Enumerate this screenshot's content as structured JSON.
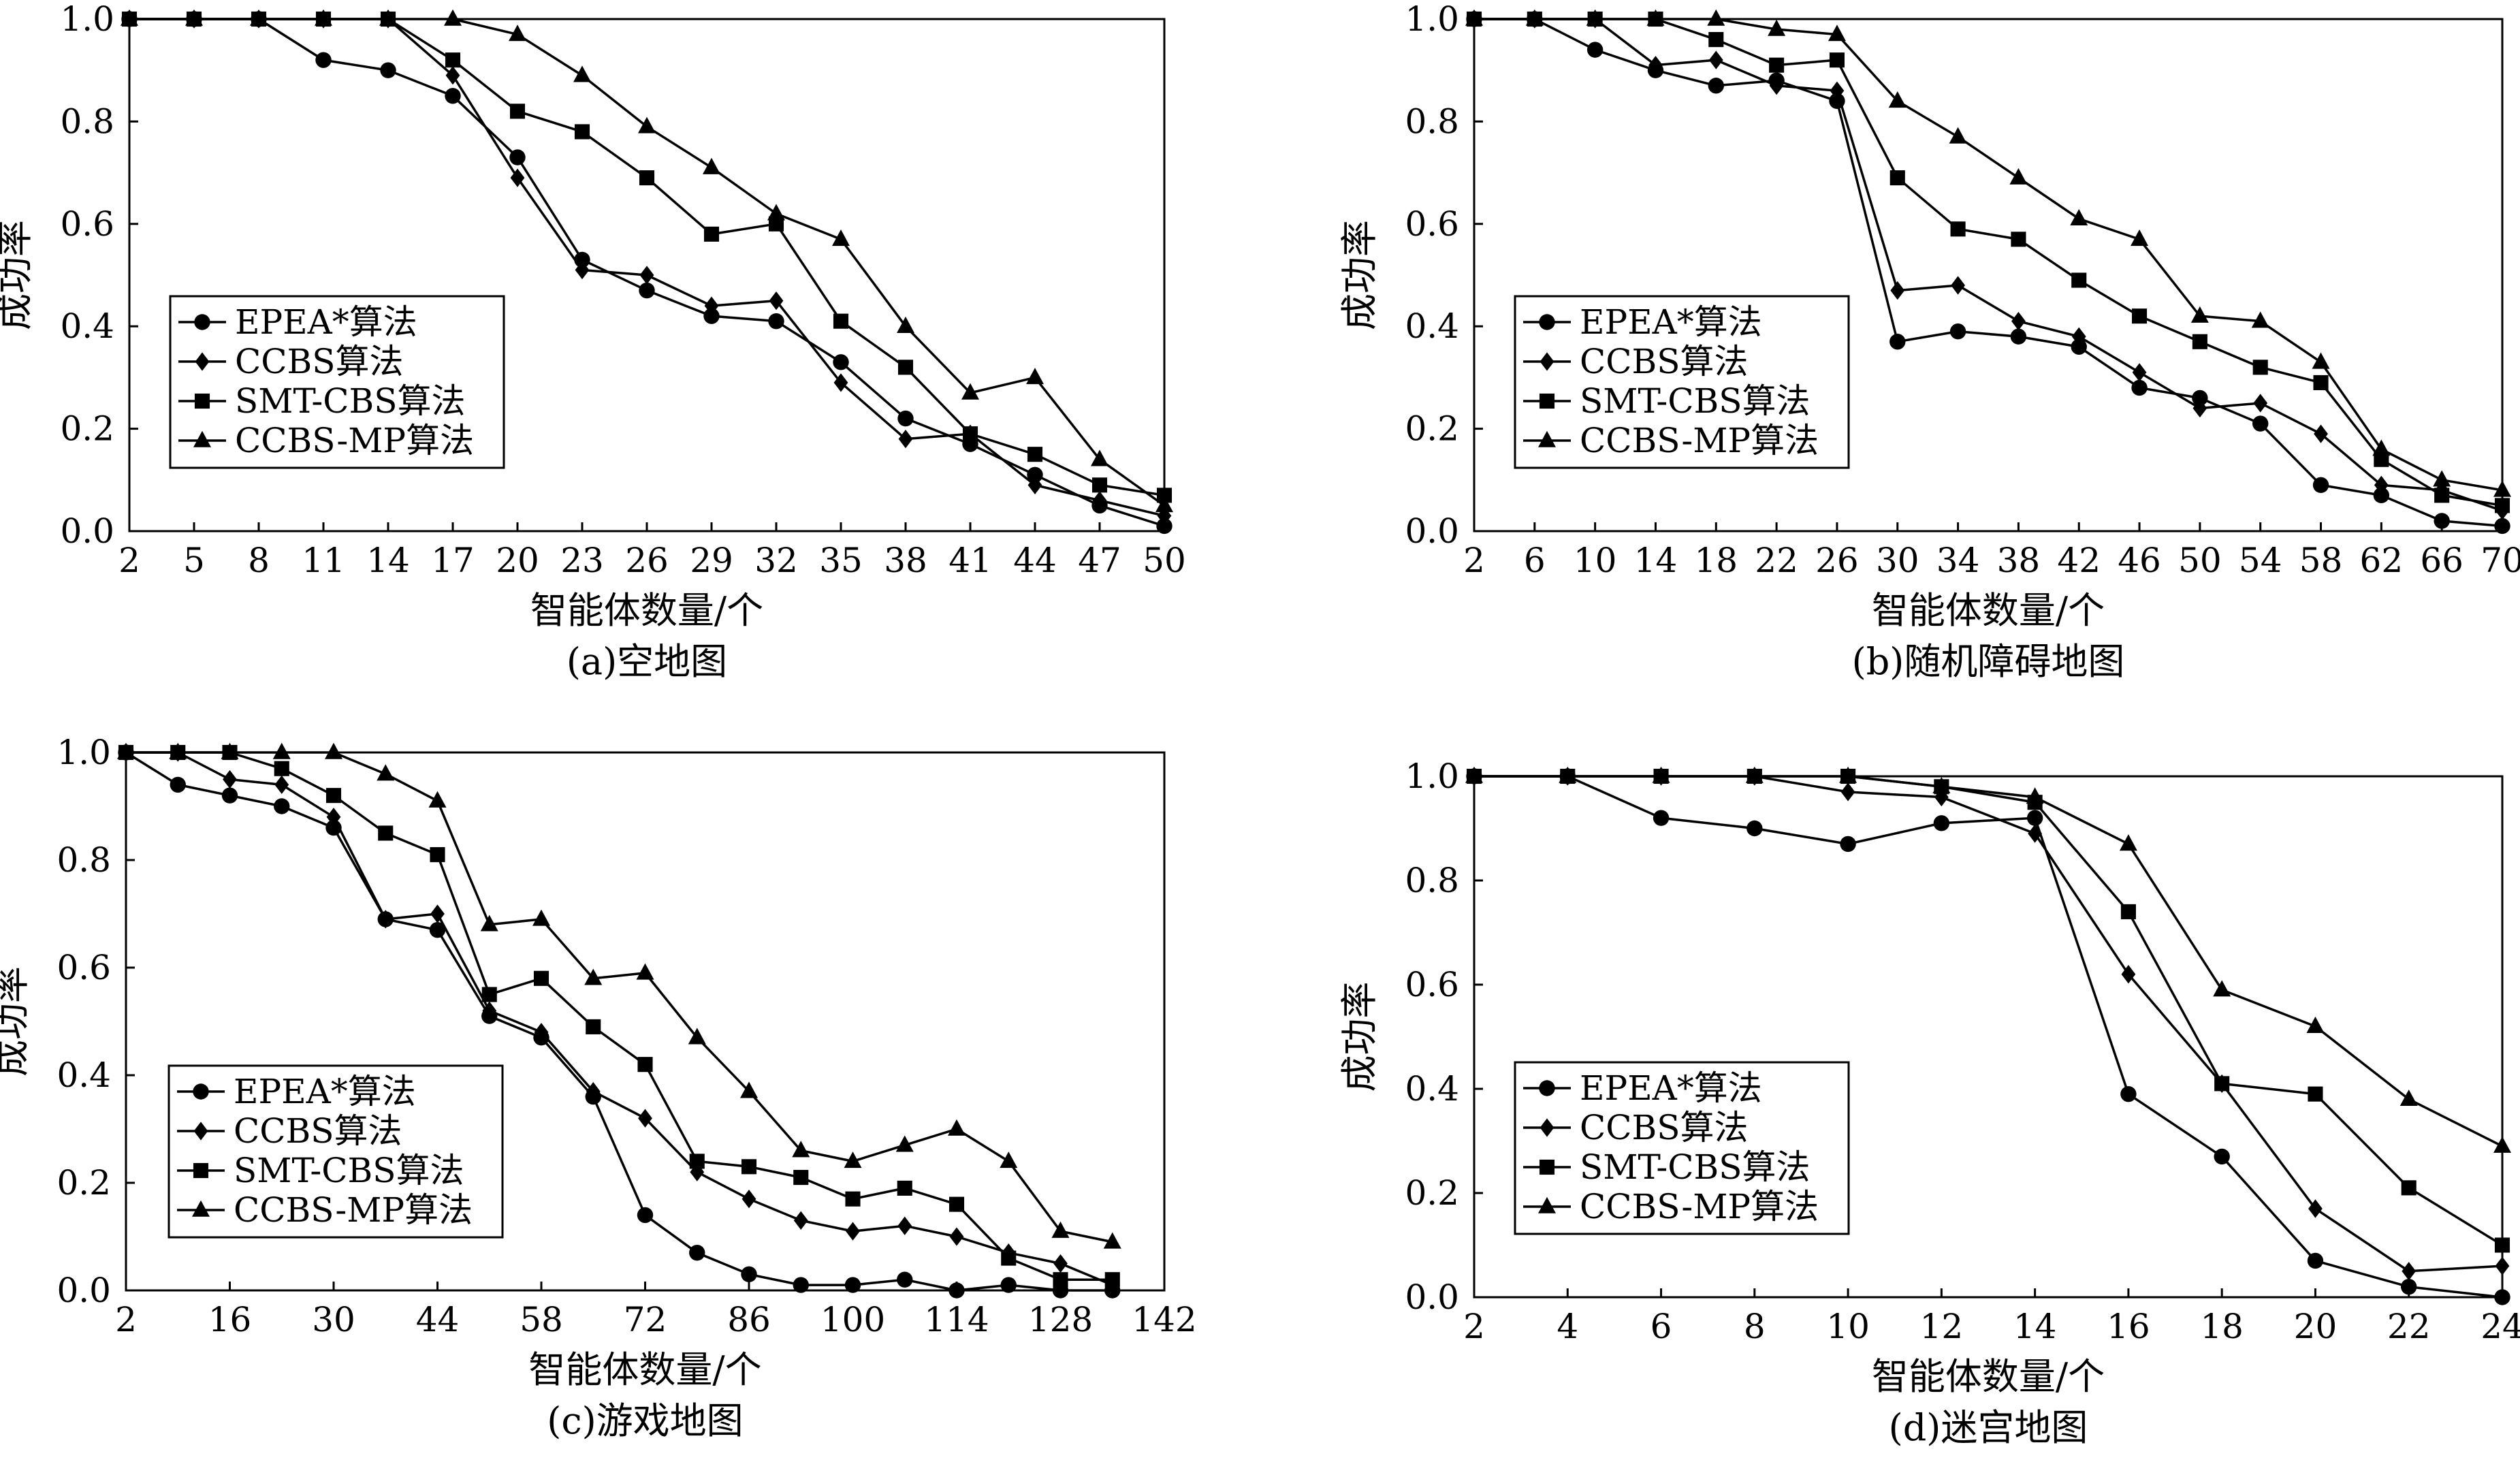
{
  "chart_data": [
    {
      "type": "line",
      "title": "",
      "caption": "(a)空地图",
      "xlabel": "智能体数量/个",
      "ylabel": "成功率",
      "x_ticks": [
        2,
        5,
        8,
        11,
        14,
        17,
        20,
        23,
        26,
        29,
        32,
        35,
        38,
        41,
        44,
        47,
        50
      ],
      "y_ticks": [
        0.0,
        0.2,
        0.4,
        0.6,
        0.8,
        1.0
      ],
      "y_tick_labels": [
        "0.0",
        "0.2",
        "0.4",
        "0.6",
        "0.8",
        "1.0"
      ],
      "xlim": [
        2,
        50
      ],
      "ylim": [
        0,
        1
      ],
      "legend_position": "bottom-left",
      "series": [
        {
          "name": "EPEA*算法",
          "marker": "circle",
          "x": [
            2,
            5,
            8,
            11,
            14,
            17,
            20,
            23,
            26,
            29,
            32,
            35,
            38,
            41,
            44,
            47,
            50
          ],
          "values": [
            1.0,
            1.0,
            1.0,
            0.92,
            0.9,
            0.85,
            0.73,
            0.53,
            0.47,
            0.42,
            0.41,
            0.33,
            0.22,
            0.17,
            0.11,
            0.05,
            0.01
          ]
        },
        {
          "name": "CCBS算法",
          "marker": "diamond",
          "x": [
            2,
            5,
            8,
            11,
            14,
            17,
            20,
            23,
            26,
            29,
            32,
            35,
            38,
            41,
            44,
            47,
            50
          ],
          "values": [
            1.0,
            1.0,
            1.0,
            1.0,
            1.0,
            0.89,
            0.69,
            0.51,
            0.5,
            0.44,
            0.45,
            0.29,
            0.18,
            0.19,
            0.09,
            0.06,
            0.03
          ]
        },
        {
          "name": "SMT-CBS算法",
          "marker": "square",
          "x": [
            2,
            5,
            8,
            11,
            14,
            17,
            20,
            23,
            26,
            29,
            32,
            35,
            38,
            41,
            44,
            47,
            50
          ],
          "values": [
            1.0,
            1.0,
            1.0,
            1.0,
            1.0,
            0.92,
            0.82,
            0.78,
            0.69,
            0.58,
            0.6,
            0.41,
            0.32,
            0.19,
            0.15,
            0.09,
            0.07
          ]
        },
        {
          "name": "CCBS-MP算法",
          "marker": "triangle",
          "x": [
            2,
            5,
            8,
            11,
            14,
            17,
            20,
            23,
            26,
            29,
            32,
            35,
            38,
            41,
            44,
            47,
            50
          ],
          "values": [
            1.0,
            1.0,
            1.0,
            1.0,
            1.0,
            1.0,
            0.97,
            0.89,
            0.79,
            0.71,
            0.62,
            0.57,
            0.4,
            0.27,
            0.3,
            0.14,
            0.05
          ]
        }
      ]
    },
    {
      "type": "line",
      "title": "",
      "caption": "(b)随机障碍地图",
      "xlabel": "智能体数量/个",
      "ylabel": "成功率",
      "x_ticks": [
        2,
        6,
        10,
        14,
        18,
        22,
        26,
        30,
        34,
        38,
        42,
        46,
        50,
        54,
        58,
        62,
        66,
        70
      ],
      "y_ticks": [
        0.0,
        0.2,
        0.4,
        0.6,
        0.8,
        1.0
      ],
      "y_tick_labels": [
        "0.0",
        "0.2",
        "0.4",
        "0.6",
        "0.8",
        "1.0"
      ],
      "xlim": [
        2,
        70
      ],
      "ylim": [
        0,
        1
      ],
      "legend_position": "bottom-left",
      "series": [
        {
          "name": "EPEA*算法",
          "marker": "circle",
          "x": [
            2,
            6,
            10,
            14,
            18,
            22,
            26,
            30,
            34,
            38,
            42,
            46,
            50,
            54,
            58,
            62,
            66,
            70
          ],
          "values": [
            1.0,
            1.0,
            0.94,
            0.9,
            0.87,
            0.88,
            0.84,
            0.37,
            0.39,
            0.38,
            0.36,
            0.28,
            0.26,
            0.21,
            0.09,
            0.07,
            0.02,
            0.01
          ]
        },
        {
          "name": "CCBS算法",
          "marker": "diamond",
          "x": [
            2,
            6,
            10,
            14,
            18,
            22,
            26,
            30,
            34,
            38,
            42,
            46,
            50,
            54,
            58,
            62,
            66,
            70
          ],
          "values": [
            1.0,
            1.0,
            1.0,
            0.91,
            0.92,
            0.87,
            0.86,
            0.47,
            0.48,
            0.41,
            0.38,
            0.31,
            0.24,
            0.25,
            0.19,
            0.09,
            0.08,
            0.04
          ]
        },
        {
          "name": "SMT-CBS算法",
          "marker": "square",
          "x": [
            2,
            6,
            10,
            14,
            18,
            22,
            26,
            30,
            34,
            38,
            42,
            46,
            50,
            54,
            58,
            62,
            66,
            70
          ],
          "values": [
            1.0,
            1.0,
            1.0,
            1.0,
            0.96,
            0.91,
            0.92,
            0.69,
            0.59,
            0.57,
            0.49,
            0.42,
            0.37,
            0.32,
            0.29,
            0.14,
            0.07,
            0.05
          ]
        },
        {
          "name": "CCBS-MP算法",
          "marker": "triangle",
          "x": [
            2,
            6,
            10,
            14,
            18,
            22,
            26,
            30,
            34,
            38,
            42,
            46,
            50,
            54,
            58,
            62,
            66,
            70
          ],
          "values": [
            1.0,
            1.0,
            1.0,
            1.0,
            1.0,
            0.98,
            0.97,
            0.84,
            0.77,
            0.69,
            0.61,
            0.57,
            0.42,
            0.41,
            0.33,
            0.16,
            0.1,
            0.08
          ]
        }
      ]
    },
    {
      "type": "line",
      "title": "",
      "caption": "(c)游戏地图",
      "xlabel": "智能体数量/个",
      "ylabel": "成功率",
      "x_ticks": [
        2,
        16,
        30,
        44,
        58,
        72,
        86,
        100,
        114,
        128,
        142
      ],
      "y_ticks": [
        0.0,
        0.2,
        0.4,
        0.6,
        0.8,
        1.0
      ],
      "y_tick_labels": [
        "0.0",
        "0.2",
        "0.4",
        "0.6",
        "0.8",
        "1.0"
      ],
      "xlim": [
        2,
        142
      ],
      "ylim": [
        0,
        1
      ],
      "legend_position": "bottom-left",
      "series": [
        {
          "name": "EPEA*算法",
          "marker": "circle",
          "x": [
            2,
            9,
            16,
            23,
            30,
            37,
            44,
            51,
            58,
            65,
            72,
            79,
            86,
            93,
            100,
            107,
            114,
            121,
            128,
            135
          ],
          "values": [
            1.0,
            0.94,
            0.92,
            0.9,
            0.86,
            0.69,
            0.67,
            0.51,
            0.47,
            0.36,
            0.14,
            0.07,
            0.03,
            0.01,
            0.01,
            0.02,
            0.0,
            0.01,
            0.0,
            0.0
          ]
        },
        {
          "name": "CCBS算法",
          "marker": "diamond",
          "x": [
            2,
            9,
            16,
            23,
            30,
            37,
            44,
            51,
            58,
            65,
            72,
            79,
            86,
            93,
            100,
            107,
            114,
            121,
            128,
            135
          ],
          "values": [
            1.0,
            1.0,
            0.95,
            0.94,
            0.88,
            0.69,
            0.7,
            0.52,
            0.48,
            0.37,
            0.32,
            0.22,
            0.17,
            0.13,
            0.11,
            0.12,
            0.1,
            0.07,
            0.05,
            0.01
          ]
        },
        {
          "name": "SMT-CBS算法",
          "marker": "square",
          "x": [
            2,
            9,
            16,
            23,
            30,
            37,
            44,
            51,
            58,
            65,
            72,
            79,
            86,
            93,
            100,
            107,
            114,
            121,
            128,
            135
          ],
          "values": [
            1.0,
            1.0,
            1.0,
            0.97,
            0.92,
            0.85,
            0.81,
            0.55,
            0.58,
            0.49,
            0.42,
            0.24,
            0.23,
            0.21,
            0.17,
            0.19,
            0.16,
            0.06,
            0.02,
            0.02
          ]
        },
        {
          "name": "CCBS-MP算法",
          "marker": "triangle",
          "x": [
            2,
            9,
            16,
            23,
            30,
            37,
            44,
            51,
            58,
            65,
            72,
            79,
            86,
            93,
            100,
            107,
            114,
            121,
            128,
            135
          ],
          "values": [
            1.0,
            1.0,
            1.0,
            1.0,
            1.0,
            0.96,
            0.91,
            0.68,
            0.69,
            0.58,
            0.59,
            0.47,
            0.37,
            0.26,
            0.24,
            0.27,
            0.3,
            0.24,
            0.11,
            0.09
          ]
        }
      ]
    },
    {
      "type": "line",
      "title": "",
      "caption": "(d)迷宫地图",
      "xlabel": "智能体数量/个",
      "ylabel": "成功率",
      "x_ticks": [
        2,
        4,
        6,
        8,
        10,
        12,
        14,
        16,
        18,
        20,
        22,
        24
      ],
      "y_ticks": [
        0.0,
        0.2,
        0.4,
        0.6,
        0.8,
        1.0
      ],
      "y_tick_labels": [
        "0.0",
        "0.2",
        "0.4",
        "0.6",
        "0.8",
        "1.0"
      ],
      "xlim": [
        2,
        24
      ],
      "ylim": [
        0,
        1
      ],
      "legend_position": "bottom-left",
      "series": [
        {
          "name": "EPEA*算法",
          "marker": "circle",
          "x": [
            2,
            4,
            6,
            8,
            10,
            12,
            14,
            16,
            18,
            20,
            22,
            24
          ],
          "values": [
            1.0,
            1.0,
            0.92,
            0.9,
            0.87,
            0.91,
            0.92,
            0.39,
            0.27,
            0.07,
            0.02,
            0.0
          ]
        },
        {
          "name": "CCBS算法",
          "marker": "diamond",
          "x": [
            2,
            4,
            6,
            8,
            10,
            12,
            14,
            16,
            18,
            20,
            22,
            24
          ],
          "values": [
            1.0,
            1.0,
            1.0,
            1.0,
            0.97,
            0.96,
            0.89,
            0.62,
            0.41,
            0.17,
            0.05,
            0.06
          ]
        },
        {
          "name": "SMT-CBS算法",
          "marker": "square",
          "x": [
            2,
            4,
            6,
            8,
            10,
            12,
            14,
            16,
            18,
            20,
            22,
            24
          ],
          "values": [
            1.0,
            1.0,
            1.0,
            1.0,
            1.0,
            0.98,
            0.95,
            0.74,
            0.41,
            0.39,
            0.21,
            0.1
          ]
        },
        {
          "name": "CCBS-MP算法",
          "marker": "triangle",
          "x": [
            2,
            4,
            6,
            8,
            10,
            12,
            14,
            16,
            18,
            20,
            22,
            24
          ],
          "values": [
            1.0,
            1.0,
            1.0,
            1.0,
            1.0,
            0.98,
            0.96,
            0.87,
            0.59,
            0.52,
            0.38,
            0.29
          ]
        }
      ]
    }
  ]
}
